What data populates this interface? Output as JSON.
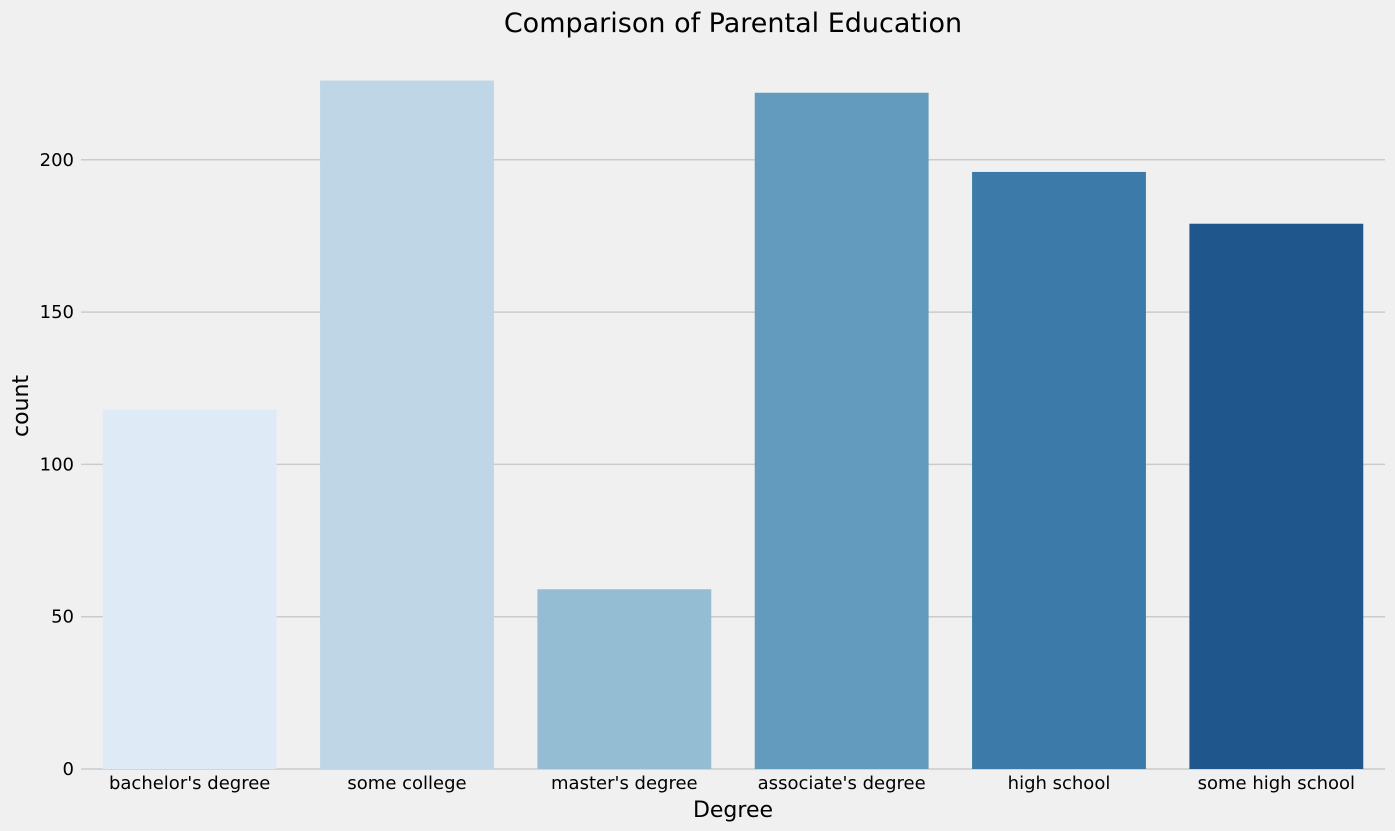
{
  "chart_data": {
    "type": "bar",
    "title": "Comparison of Parental Education",
    "xlabel": "Degree",
    "ylabel": "count",
    "categories": [
      "bachelor's degree",
      "some college",
      "master's degree",
      "associate's degree",
      "high school",
      "some high school"
    ],
    "values": [
      118,
      226,
      59,
      222,
      196,
      179
    ],
    "ylim": [
      0,
      238
    ],
    "yticks": [
      0,
      50,
      100,
      150,
      200
    ],
    "grid": "horizontal",
    "background_color": "#f0f0f0",
    "grid_color": "#cbcbcb",
    "bar_colors": [
      "#deebf7",
      "#bfd6e7",
      "#94bcd3",
      "#629bbe",
      "#3c7aaa",
      "#1f568c"
    ]
  }
}
